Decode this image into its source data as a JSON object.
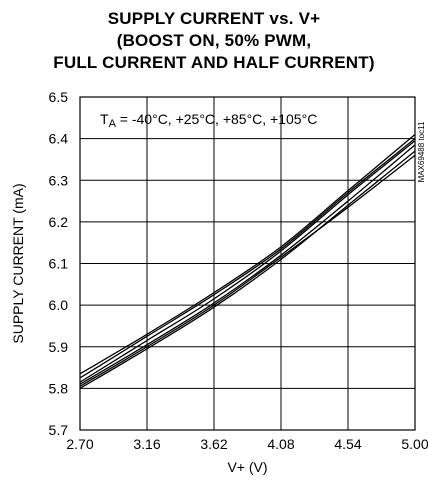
{
  "chart_data": {
    "type": "line",
    "title_lines": [
      "SUPPLY CURRENT vs. V+",
      "(BOOST ON, 50% PWM,",
      "FULL CURRENT AND HALF CURRENT)"
    ],
    "xlabel": "V+ (V)",
    "ylabel": "SUPPLY CURRENT (mA)",
    "xlim": [
      2.7,
      5.0
    ],
    "ylim": [
      5.7,
      6.5
    ],
    "x_ticks": [
      "2.70",
      "3.16",
      "3.62",
      "4.08",
      "4.54",
      "5.00"
    ],
    "y_ticks": [
      "5.7",
      "5.8",
      "5.9",
      "6.0",
      "6.1",
      "6.2",
      "6.3",
      "6.4",
      "6.5"
    ],
    "grid": true,
    "annotation": {
      "prefix": "T",
      "subscript": "A",
      "text": " = -40°C, +25°C, +85°C, +105°C"
    },
    "part_id": "MAX69488 toc11",
    "x": [
      2.7,
      3.16,
      3.62,
      4.08,
      4.54,
      5.0
    ],
    "series": [
      {
        "values": [
          5.835,
          5.93,
          6.03,
          6.14,
          6.275,
          6.41
        ]
      },
      {
        "values": [
          5.825,
          5.925,
          6.025,
          6.135,
          6.27,
          6.4
        ]
      },
      {
        "values": [
          5.815,
          5.915,
          6.015,
          6.13,
          6.265,
          6.395
        ]
      },
      {
        "values": [
          5.81,
          5.905,
          6.005,
          6.12,
          6.25,
          6.385
        ]
      },
      {
        "values": [
          5.8,
          5.895,
          5.995,
          6.11,
          6.24,
          6.37
        ]
      },
      {
        "values": [
          5.805,
          5.9,
          6.0,
          6.115,
          6.235,
          6.36
        ]
      }
    ]
  }
}
